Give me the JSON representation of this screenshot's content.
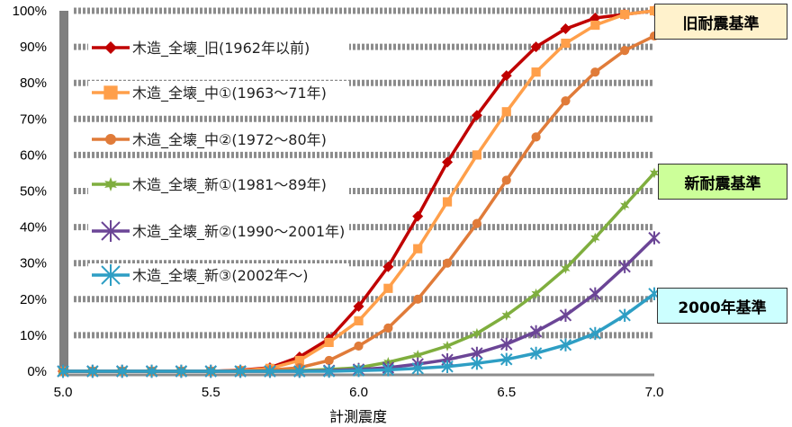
{
  "chart_data": {
    "type": "line",
    "xlabel": "計測震度",
    "xlim": [
      5.0,
      7.0
    ],
    "ylim": [
      0,
      100
    ],
    "x_ticks": [
      "5.0",
      "5.5",
      "6.0",
      "6.5",
      "7.0"
    ],
    "y_ticks": [
      "0%",
      "10%",
      "20%",
      "30%",
      "40%",
      "50%",
      "60%",
      "70%",
      "80%",
      "90%",
      "100%"
    ],
    "x": [
      5.0,
      5.1,
      5.2,
      5.3,
      5.4,
      5.5,
      5.6,
      5.7,
      5.8,
      5.9,
      6.0,
      6.1,
      6.2,
      6.3,
      6.4,
      6.5,
      6.6,
      6.7,
      6.8,
      6.9,
      7.0
    ],
    "series": [
      {
        "name": "木造_全壊_旧(1962年以前)",
        "color": "#C00000",
        "marker": "diamond",
        "values": [
          0,
          0,
          0,
          0,
          0,
          0,
          0.3,
          1,
          4,
          9,
          18,
          29,
          43,
          58,
          71,
          82,
          90,
          95,
          98,
          99,
          100
        ]
      },
      {
        "name": "木造_全壊_中①(1963～71年)",
        "color": "#FF9F4A",
        "marker": "square",
        "values": [
          0,
          0,
          0,
          0,
          0,
          0,
          0.2,
          0.8,
          3,
          8,
          14,
          23,
          34,
          47,
          60,
          72,
          83,
          91,
          96,
          99,
          100
        ]
      },
      {
        "name": "木造_全壊_中②(1972～80年)",
        "color": "#E07B39",
        "marker": "circle",
        "values": [
          0,
          0,
          0,
          0,
          0,
          0,
          0.1,
          0.3,
          1,
          3,
          7,
          12,
          20,
          30,
          41,
          53,
          65,
          75,
          83,
          89,
          93
        ]
      },
      {
        "name": "木造_全壊_新①(1981～89年)",
        "color": "#7FAE3E",
        "marker": "star",
        "values": [
          0,
          0,
          0,
          0,
          0,
          0,
          0,
          0,
          0.2,
          0.5,
          1,
          2.5,
          4.5,
          7,
          10.5,
          15.5,
          21.5,
          28.5,
          37,
          46,
          55
        ]
      },
      {
        "name": "木造_全壊_新②(1990～2001年)",
        "color": "#6B4596",
        "marker": "cross",
        "values": [
          0,
          0,
          0,
          0,
          0,
          0,
          0,
          0,
          0,
          0.2,
          0.5,
          1,
          2,
          3.2,
          5,
          7.5,
          11,
          15.5,
          21.5,
          29,
          37
        ]
      },
      {
        "name": "木造_全壊_新③(2002年～)",
        "color": "#2E9EC4",
        "marker": "cross",
        "values": [
          0,
          0,
          0,
          0,
          0,
          0,
          0,
          0,
          0,
          0,
          0.2,
          0.4,
          0.8,
          1.3,
          2.2,
          3.3,
          5,
          7.3,
          10.5,
          15.5,
          21.5
        ]
      }
    ],
    "annotations": [
      {
        "text": "旧耐震基準",
        "color": "#FFF2CC"
      },
      {
        "text": "新耐震基準",
        "color": "#CCFF99"
      },
      {
        "text": "2000年基準",
        "color": "#CCFFFF"
      }
    ]
  }
}
